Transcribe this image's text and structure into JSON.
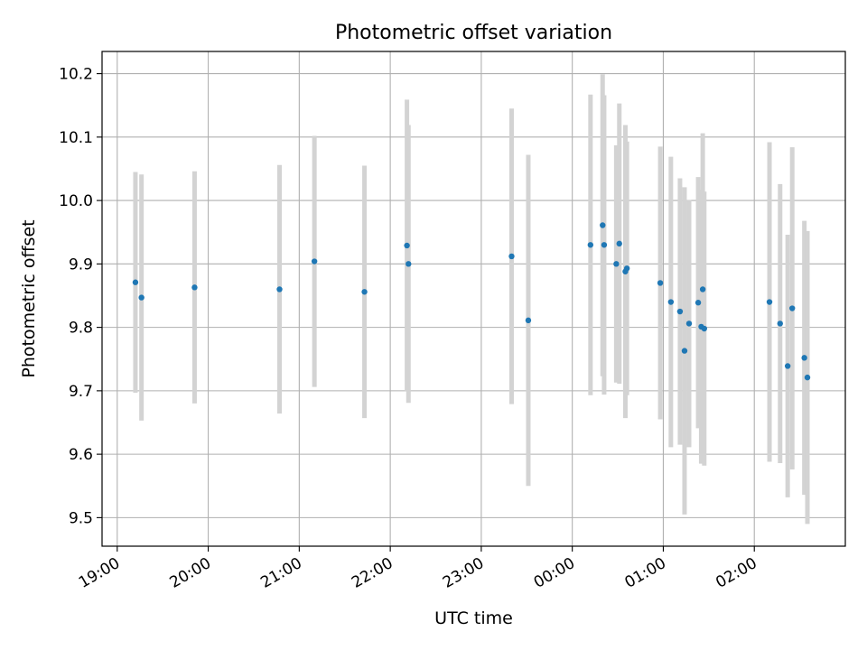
{
  "chart_data": {
    "type": "scatter",
    "title": "Photometric offset variation",
    "xlabel": "UTC time",
    "ylabel": "Photometric offset",
    "xlim": [
      "18:50",
      "27:00"
    ],
    "ylim": [
      9.455,
      10.235
    ],
    "x_ticks": [
      "19:00",
      "20:00",
      "21:00",
      "22:00",
      "23:00",
      "00:00",
      "01:00",
      "02:00"
    ],
    "y_ticks": [
      "9.5",
      "9.6",
      "9.7",
      "9.8",
      "9.9",
      "10.0",
      "10.1",
      "10.2"
    ],
    "grid": true,
    "point_color": "#1f77b4",
    "errorbar_color": "#d3d3d3",
    "points": [
      {
        "x": "19:12",
        "y": 9.871,
        "err": 0.174
      },
      {
        "x": "19:16",
        "y": 9.847,
        "err": 0.194
      },
      {
        "x": "19:51",
        "y": 9.863,
        "err": 0.183
      },
      {
        "x": "20:47",
        "y": 9.86,
        "err": 0.196
      },
      {
        "x": "21:10",
        "y": 9.904,
        "err": 0.198
      },
      {
        "x": "21:43",
        "y": 9.856,
        "err": 0.199
      },
      {
        "x": "22:11",
        "y": 9.929,
        "err": 0.23
      },
      {
        "x": "22:12",
        "y": 9.9,
        "err": 0.219
      },
      {
        "x": "23:20",
        "y": 9.912,
        "err": 0.233
      },
      {
        "x": "23:31",
        "y": 9.811,
        "err": 0.261
      },
      {
        "x": "24:12",
        "y": 9.93,
        "err": 0.237
      },
      {
        "x": "24:20",
        "y": 9.961,
        "err": 0.238
      },
      {
        "x": "24:21",
        "y": 9.93,
        "err": 0.236
      },
      {
        "x": "24:29",
        "y": 9.9,
        "err": 0.187
      },
      {
        "x": "24:31",
        "y": 9.932,
        "err": 0.221
      },
      {
        "x": "24:35",
        "y": 9.888,
        "err": 0.231
      },
      {
        "x": "24:36",
        "y": 9.893,
        "err": 0.2
      },
      {
        "x": "24:58",
        "y": 9.87,
        "err": 0.215
      },
      {
        "x": "25:05",
        "y": 9.84,
        "err": 0.229
      },
      {
        "x": "25:11",
        "y": 9.825,
        "err": 0.21
      },
      {
        "x": "25:14",
        "y": 9.763,
        "err": 0.258
      },
      {
        "x": "25:17",
        "y": 9.806,
        "err": 0.195
      },
      {
        "x": "25:23",
        "y": 9.839,
        "err": 0.198
      },
      {
        "x": "25:25",
        "y": 9.801,
        "err": 0.216
      },
      {
        "x": "25:26",
        "y": 9.86,
        "err": 0.246
      },
      {
        "x": "25:27",
        "y": 9.798,
        "err": 0.216
      },
      {
        "x": "26:10",
        "y": 9.84,
        "err": 0.252
      },
      {
        "x": "26:17",
        "y": 9.806,
        "err": 0.22
      },
      {
        "x": "26:22",
        "y": 9.739,
        "err": 0.207
      },
      {
        "x": "26:25",
        "y": 9.83,
        "err": 0.254
      },
      {
        "x": "26:33",
        "y": 9.752,
        "err": 0.216
      },
      {
        "x": "26:35",
        "y": 9.721,
        "err": 0.231
      }
    ]
  }
}
